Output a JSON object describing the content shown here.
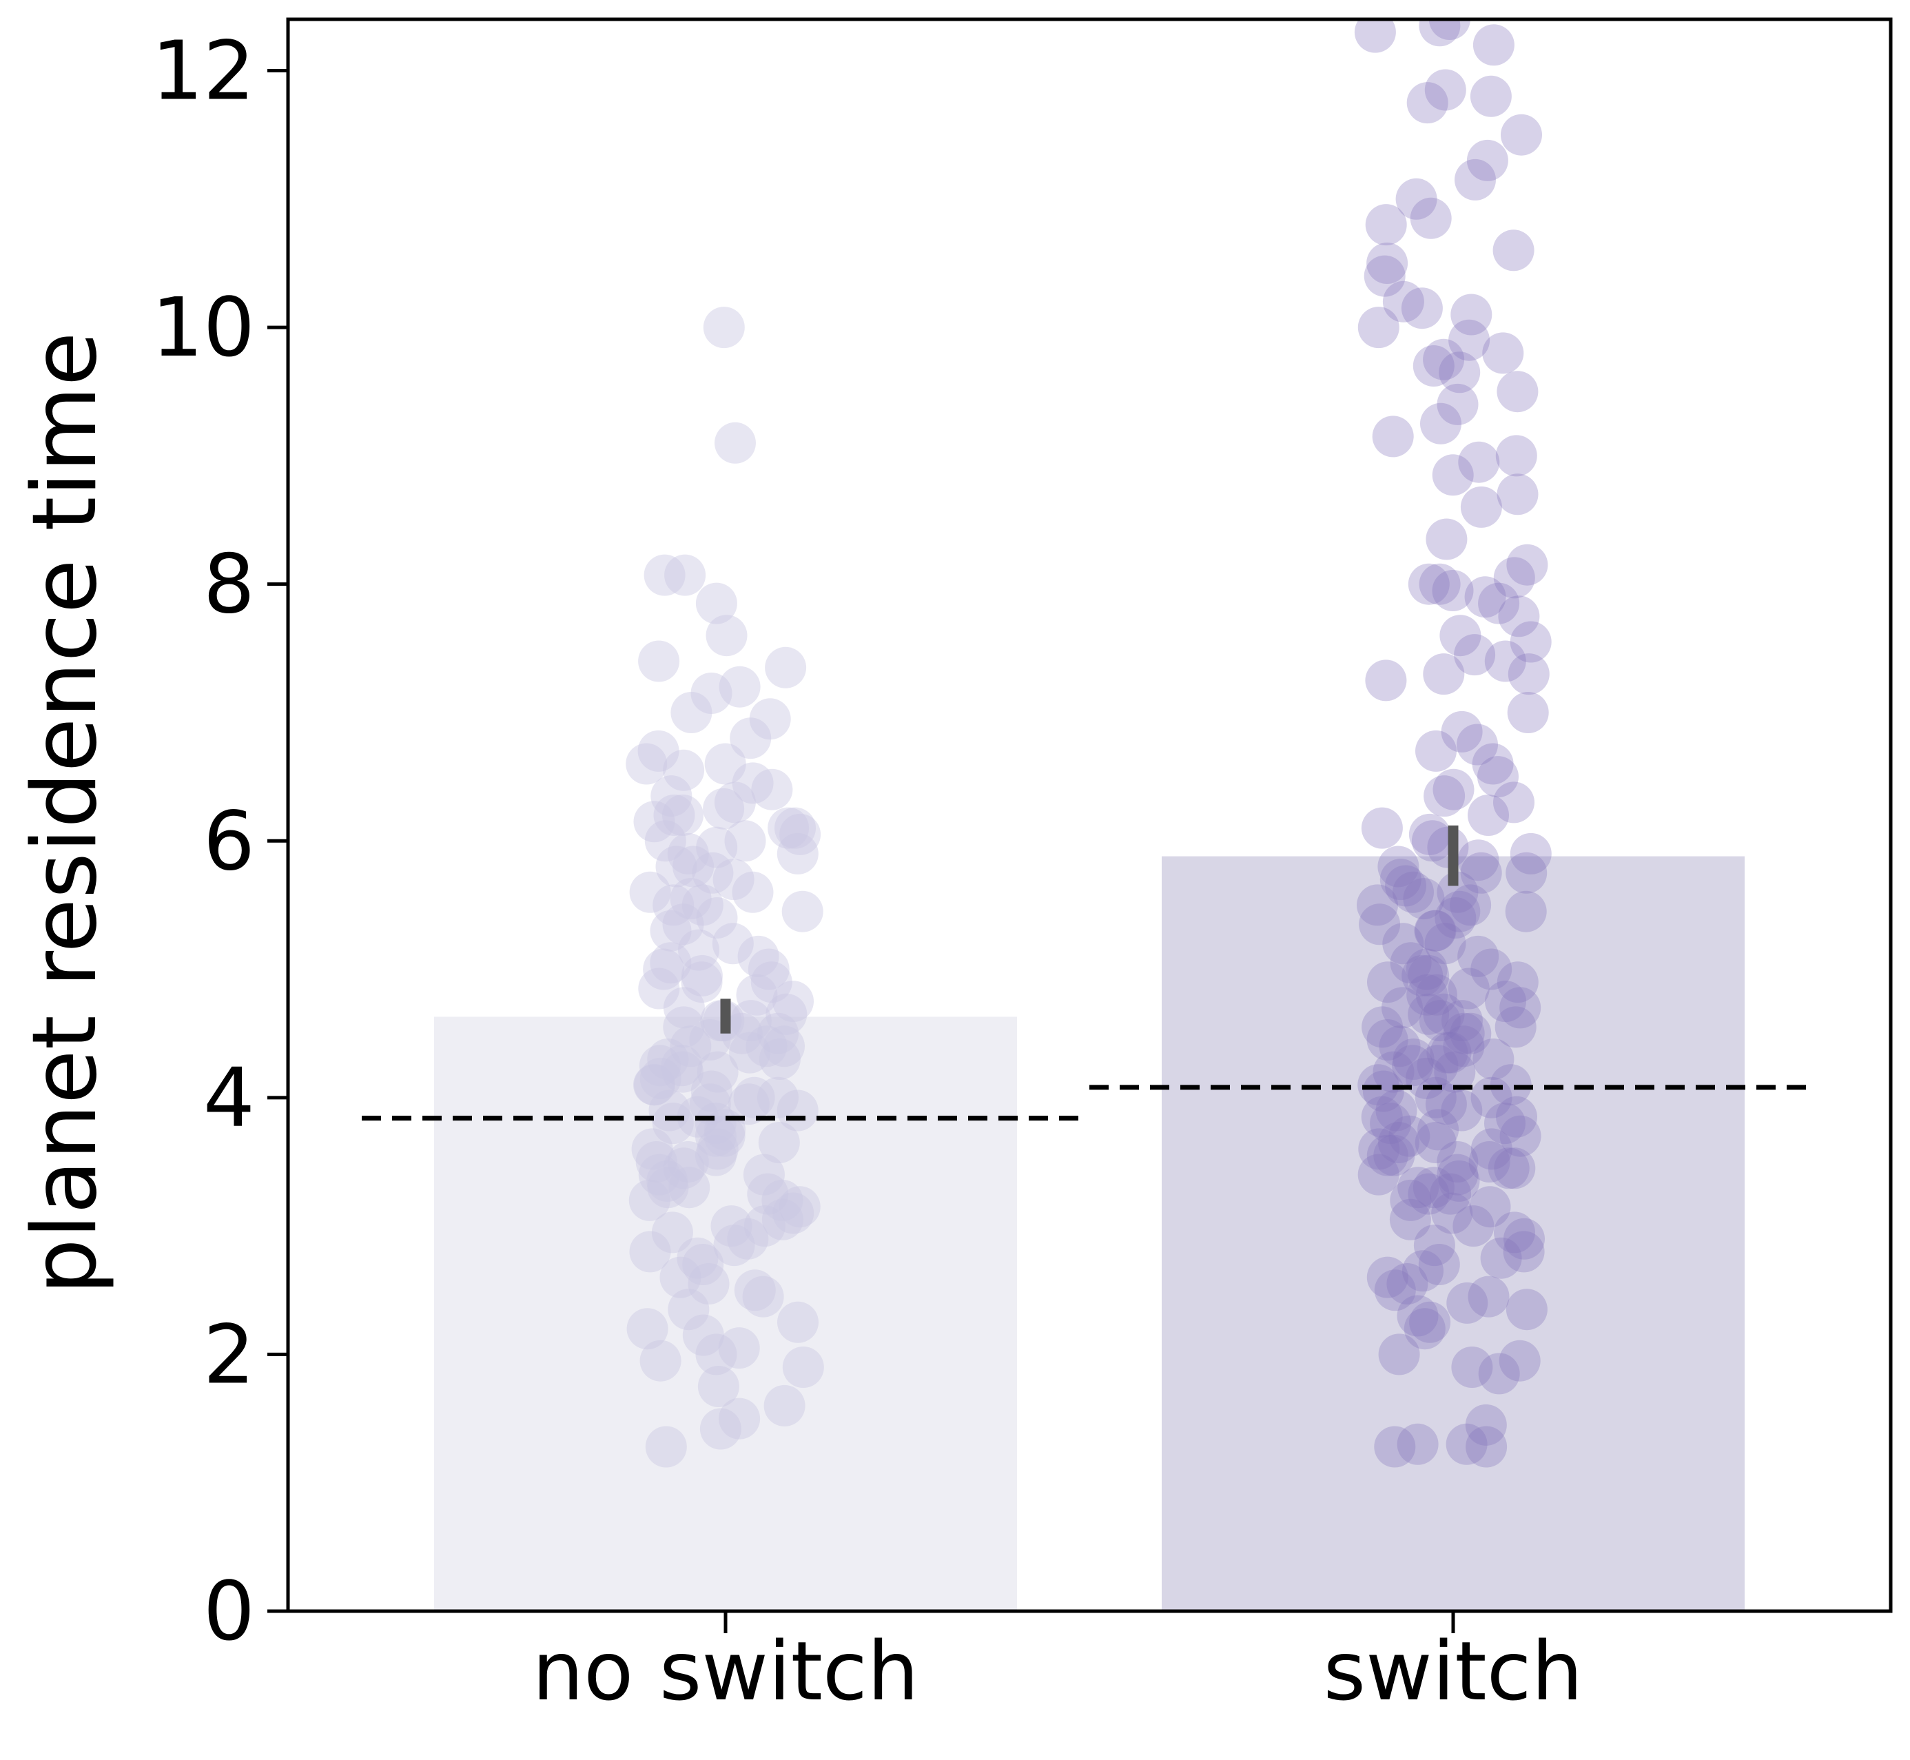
{
  "chart_data": {
    "type": "bar",
    "ylabel": "planet residence time",
    "xlabel": "",
    "ylim": [
      0,
      12.4
    ],
    "yticks": [
      0,
      2,
      4,
      6,
      8,
      10,
      12
    ],
    "categories": [
      "no switch",
      "switch"
    ],
    "values": [
      4.63,
      5.88
    ],
    "error_bars": [
      [
        4.5,
        4.77
      ],
      [
        5.65,
        6.12
      ]
    ],
    "reference_lines": [
      3.84,
      4.08
    ],
    "colors": {
      "bar_no_switch": "#eeeef4",
      "bar_switch": "#d8d6e6",
      "points_no_switch": "#c9c8e3",
      "points_switch": "#8273bb",
      "error_bar": "#555555",
      "reference_line": "#000000"
    },
    "points": [
      [
        10.0,
        9.1,
        8.07,
        8.07,
        7.85,
        7.6,
        7.4,
        7.35,
        7.2,
        7.15,
        7.0,
        6.95,
        6.8,
        6.7,
        6.6,
        6.55,
        6.45,
        6.35,
        6.3,
        6.25,
        6.2,
        6.15,
        6.1,
        6.05,
        6.0,
        5.95,
        5.9,
        5.8,
        5.75,
        5.7,
        5.6,
        5.55,
        5.5,
        5.45,
        5.4,
        5.35,
        5.2,
        5.15,
        5.05,
        5.0,
        4.95,
        4.9,
        4.85,
        4.75,
        4.7,
        4.65,
        4.6,
        4.55,
        4.5,
        4.45,
        4.4,
        4.35,
        4.3,
        4.25,
        4.2,
        4.15,
        4.1,
        4.05,
        4.0,
        3.95,
        3.9,
        3.85,
        3.8,
        3.75,
        3.7,
        3.65,
        3.6,
        3.55,
        3.5,
        3.45,
        3.4,
        3.35,
        3.3,
        3.25,
        3.2,
        3.15,
        3.1,
        3.05,
        3.0,
        2.9,
        2.85,
        2.8,
        2.75,
        2.7,
        2.6,
        2.55,
        2.5,
        2.45,
        2.35,
        2.25,
        2.2,
        2.15,
        2.05,
        2.0,
        1.95,
        1.9,
        1.75,
        1.6,
        1.5,
        1.42,
        1.28,
        6.4,
        6.1,
        5.9,
        5.6,
        5.3,
        5.1,
        4.8,
        4.6,
        4.4,
        4.2,
        4.0,
        3.8,
        3.6,
        3.4,
        3.2,
        3.0,
        4.5,
        4.3,
        3.9,
        3.7,
        4.1,
        4.4,
        4.6,
        3.5,
        5.5,
        6.2,
        5.8,
        4.9,
        3.3,
        2.95,
        6.6,
        6.0,
        4.25,
        3.95,
        5.0
      ],
      [
        12.4,
        12.35,
        12.3,
        12.2,
        11.85,
        11.8,
        11.75,
        11.5,
        11.3,
        11.15,
        11.0,
        10.85,
        10.8,
        10.6,
        10.5,
        10.4,
        10.2,
        10.15,
        10.0,
        9.9,
        9.75,
        9.7,
        9.65,
        9.5,
        9.4,
        9.25,
        9.15,
        9.0,
        8.95,
        8.85,
        8.7,
        8.6,
        8.35,
        8.15,
        8.05,
        8.0,
        7.95,
        7.9,
        7.85,
        7.75,
        7.6,
        7.55,
        7.45,
        7.4,
        7.3,
        7.25,
        7.0,
        6.85,
        6.75,
        6.7,
        6.6,
        6.5,
        6.4,
        6.35,
        6.3,
        6.2,
        6.1,
        6.0,
        5.95,
        5.9,
        5.85,
        5.8,
        5.75,
        5.7,
        5.65,
        5.6,
        5.55,
        5.5,
        5.45,
        5.4,
        5.35,
        5.3,
        5.2,
        5.1,
        5.05,
        5.0,
        4.95,
        4.9,
        4.85,
        4.8,
        4.75,
        4.7,
        4.65,
        4.6,
        4.55,
        4.5,
        4.45,
        4.4,
        4.35,
        4.3,
        4.25,
        4.2,
        4.15,
        4.1,
        4.05,
        4.0,
        3.95,
        3.9,
        3.85,
        3.8,
        3.75,
        3.7,
        3.65,
        3.6,
        3.55,
        3.5,
        3.45,
        3.4,
        3.35,
        3.3,
        3.25,
        3.2,
        3.15,
        3.1,
        3.05,
        3.0,
        2.95,
        2.9,
        2.85,
        2.8,
        2.75,
        2.7,
        2.6,
        2.55,
        2.5,
        2.45,
        2.4,
        2.35,
        2.3,
        2.25,
        2.2,
        2.0,
        1.95,
        1.9,
        1.85,
        1.45,
        1.3,
        1.3,
        1.28,
        1.28,
        5.75,
        5.5,
        5.0,
        4.8,
        4.6,
        4.4,
        4.2,
        4.0,
        3.8,
        3.6,
        3.4,
        3.5,
        4.5,
        5.3,
        4.9,
        3.9,
        3.3,
        4.7,
        4.3,
        3.7,
        5.2,
        4.1,
        4.65,
        3.55,
        3.45,
        4.95,
        5.6,
        4.25,
        3.85,
        6.05,
        8.0,
        7.3,
        9.8,
        10.1,
        5.45,
        4.55,
        4.35,
        3.65,
        3.25,
        2.65
      ]
    ]
  }
}
